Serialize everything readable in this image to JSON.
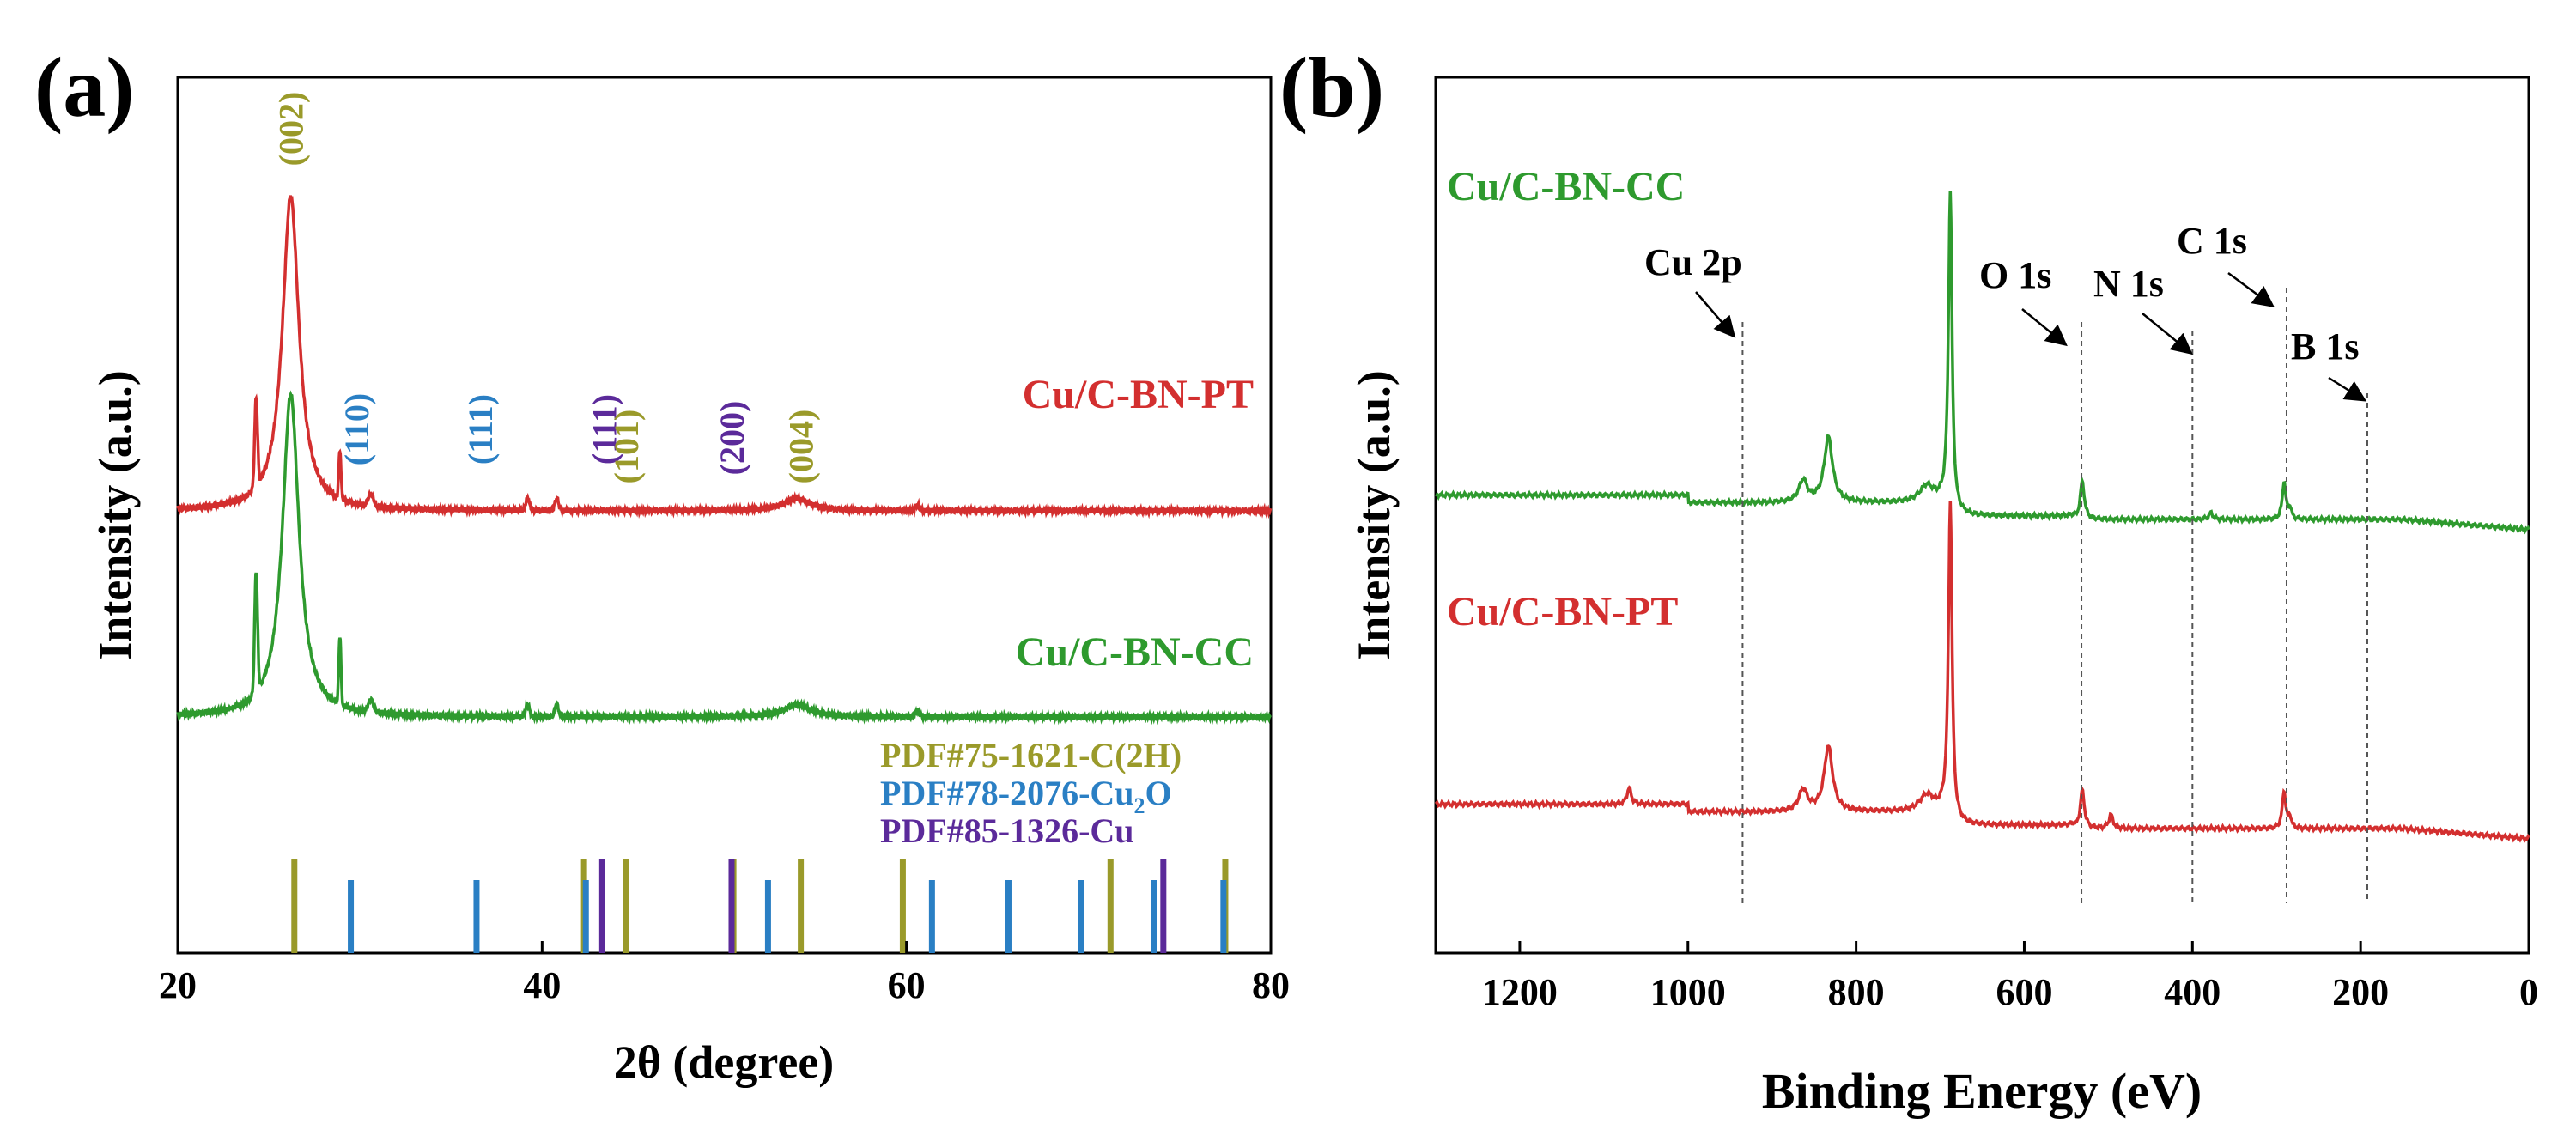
{
  "chart_data": [
    {
      "panel_label": "(a)",
      "type": "line",
      "xlabel": "2θ (degree)",
      "ylabel": "Intensity (a.u.)",
      "xlim": [
        20,
        80
      ],
      "xticks": [
        "20",
        "40",
        "60",
        "80"
      ],
      "series": [
        {
          "name": "Cu/C-BN-PT",
          "color": "#d32f2f",
          "baseline_pct": 50,
          "peaks": [
            {
              "x": 24.3,
              "h": 22,
              "w": 0.08
            },
            {
              "x": 26.2,
              "h": 78,
              "w": 0.55
            },
            {
              "x": 28.9,
              "h": 12,
              "w": 0.06
            },
            {
              "x": 30.6,
              "h": 3,
              "w": 0.15
            },
            {
              "x": 39.2,
              "h": 3,
              "w": 0.1
            },
            {
              "x": 40.8,
              "h": 3,
              "w": 0.1
            },
            {
              "x": 54.0,
              "h": 3,
              "w": 0.9
            },
            {
              "x": 60.6,
              "h": 1.5,
              "w": 0.1
            }
          ]
        },
        {
          "name": "Cu/C-BN-CC",
          "color": "#2e9a2e",
          "baseline_pct": 0,
          "peaks": [
            {
              "x": 24.3,
              "h": 30,
              "w": 0.08
            },
            {
              "x": 26.2,
              "h": 80,
              "w": 0.55
            },
            {
              "x": 28.9,
              "h": 17,
              "w": 0.06
            },
            {
              "x": 30.6,
              "h": 3,
              "w": 0.15
            },
            {
              "x": 39.2,
              "h": 3,
              "w": 0.1
            },
            {
              "x": 40.8,
              "h": 3,
              "w": 0.1
            },
            {
              "x": 54.0,
              "h": 3,
              "w": 0.9
            },
            {
              "x": 60.6,
              "h": 1.5,
              "w": 0.1
            }
          ]
        }
      ],
      "peak_labels": [
        {
          "text": "(002)",
          "x": 26.2,
          "color": "#9a9a2a"
        },
        {
          "text": "(110)",
          "x": 29.8,
          "color": "#2a7fc4"
        },
        {
          "text": "(111)",
          "x": 36.6,
          "color": "#2a7fc4"
        },
        {
          "text": "(111)",
          "x": 43.4,
          "color": "#5b2a9a"
        },
        {
          "text": "(101)",
          "x": 44.6,
          "color": "#9a9a2a"
        },
        {
          "text": "(200)",
          "x": 50.4,
          "color": "#5b2a9a"
        },
        {
          "text": "(004)",
          "x": 54.2,
          "color": "#9a9a2a"
        }
      ],
      "legend": [
        {
          "text": "PDF#75-1621-C(2H)",
          "color": "#9a9a2a"
        },
        {
          "text": "PDF#78-2076-Cu",
          "sub": "2",
          "tail": "O",
          "color": "#2a7fc4"
        },
        {
          "text": "PDF#85-1326-Cu",
          "color": "#5b2a9a"
        }
      ],
      "reference_lines": [
        {
          "x": 26.4,
          "color": "#9a9a2a"
        },
        {
          "x": 42.3,
          "color": "#9a9a2a"
        },
        {
          "x": 44.6,
          "color": "#9a9a2a"
        },
        {
          "x": 50.5,
          "color": "#9a9a2a"
        },
        {
          "x": 54.2,
          "color": "#9a9a2a"
        },
        {
          "x": 59.8,
          "color": "#9a9a2a"
        },
        {
          "x": 71.2,
          "color": "#9a9a2a"
        },
        {
          "x": 77.5,
          "color": "#9a9a2a"
        },
        {
          "x": 29.5,
          "color": "#2a7fc4"
        },
        {
          "x": 36.4,
          "color": "#2a7fc4"
        },
        {
          "x": 42.4,
          "color": "#2a7fc4"
        },
        {
          "x": 52.4,
          "color": "#2a7fc4"
        },
        {
          "x": 61.4,
          "color": "#2a7fc4"
        },
        {
          "x": 65.6,
          "color": "#2a7fc4"
        },
        {
          "x": 69.6,
          "color": "#2a7fc4"
        },
        {
          "x": 73.6,
          "color": "#2a7fc4"
        },
        {
          "x": 77.4,
          "color": "#2a7fc4"
        },
        {
          "x": 43.3,
          "color": "#5b2a9a"
        },
        {
          "x": 50.4,
          "color": "#5b2a9a"
        },
        {
          "x": 74.1,
          "color": "#5b2a9a"
        }
      ]
    },
    {
      "panel_label": "(b)",
      "type": "line",
      "xlabel": "Binding Energy (eV)",
      "ylabel": "Intensity (a.u.)",
      "xlim": [
        1300,
        0
      ],
      "xticks": [
        "1200",
        "1000",
        "800",
        "600",
        "400",
        "200",
        "0"
      ],
      "series": [
        {
          "name": "Cu/C-BN-CC",
          "color": "#2e9a2e",
          "baseline_pct": 50,
          "peaks": [
            {
              "x": 833,
              "h": 12,
              "w": 6
            },
            {
              "x": 863,
              "h": 4,
              "w": 6
            },
            {
              "x": 716,
              "h": 3,
              "w": 10
            },
            {
              "x": 688,
              "h": 60,
              "w": 2.5
            },
            {
              "x": 531,
              "h": 7,
              "w": 3
            },
            {
              "x": 378,
              "h": 1.2,
              "w": 3
            },
            {
              "x": 291,
              "h": 7,
              "w": 2.5
            },
            {
              "x": 284,
              "h": 2,
              "w": 2
            }
          ]
        },
        {
          "name": "Cu/C-BN-PT",
          "color": "#d32f2f",
          "baseline_pct": 0,
          "peaks": [
            {
              "x": 833,
              "h": 12,
              "w": 6
            },
            {
              "x": 863,
              "h": 4,
              "w": 6
            },
            {
              "x": 716,
              "h": 3,
              "w": 10
            },
            {
              "x": 688,
              "h": 60,
              "w": 2.5
            },
            {
              "x": 1070,
              "h": 3,
              "w": 3
            },
            {
              "x": 531,
              "h": 7,
              "w": 3
            },
            {
              "x": 497,
              "h": 2.5,
              "w": 3
            },
            {
              "x": 291,
              "h": 7,
              "w": 2.5
            },
            {
              "x": 284,
              "h": 2,
              "w": 2
            }
          ]
        }
      ],
      "annotations": [
        {
          "text": "Cu 2p",
          "x": 935
        },
        {
          "text": "O 1s",
          "x": 532
        },
        {
          "text": "N 1s",
          "x": 400
        },
        {
          "text": "C 1s",
          "x": 288
        },
        {
          "text": "B 1s",
          "x": 192
        }
      ]
    }
  ]
}
